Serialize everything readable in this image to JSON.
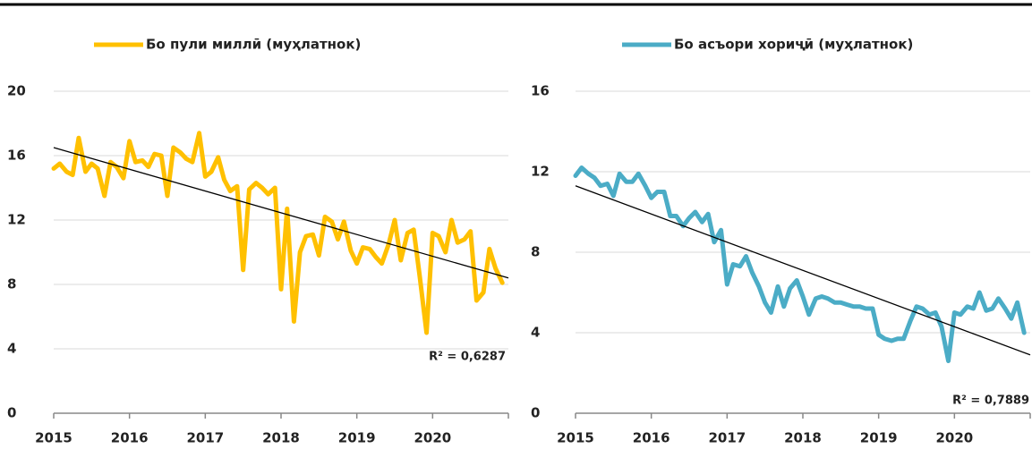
{
  "chart_data": [
    {
      "type": "line",
      "x": [
        2015,
        2015.08,
        2015.17,
        2015.25,
        2015.33,
        2015.42,
        2015.5,
        2015.58,
        2015.67,
        2015.75,
        2015.83,
        2015.92,
        2016,
        2016.08,
        2016.17,
        2016.25,
        2016.33,
        2016.42,
        2016.5,
        2016.58,
        2016.67,
        2016.75,
        2016.83,
        2016.92,
        2017,
        2017.08,
        2017.17,
        2017.25,
        2017.33,
        2017.42,
        2017.5,
        2017.58,
        2017.67,
        2017.75,
        2017.83,
        2017.92,
        2018,
        2018.08,
        2018.17,
        2018.25,
        2018.33,
        2018.42,
        2018.5,
        2018.58,
        2018.67,
        2018.75,
        2018.83,
        2018.92,
        2019,
        2019.08,
        2019.17,
        2019.25,
        2019.33,
        2019.42,
        2019.5,
        2019.58,
        2019.67,
        2019.75,
        2019.83,
        2019.92,
        2020,
        2020.08,
        2020.17,
        2020.25,
        2020.33,
        2020.42,
        2020.5,
        2020.58,
        2020.67,
        2020.75,
        2020.83,
        2020.92
      ],
      "series": [
        {
          "name": "Бо пули миллӣ (муҳлатнок)",
          "color": "#FFC000",
          "values": [
            15.2,
            15.5,
            15.0,
            14.8,
            17.1,
            15.0,
            15.5,
            15.2,
            13.5,
            15.6,
            15.3,
            14.6,
            16.9,
            15.6,
            15.7,
            15.3,
            16.1,
            16.0,
            13.5,
            16.5,
            16.2,
            15.8,
            15.6,
            17.4,
            14.7,
            15.0,
            15.9,
            14.5,
            13.8,
            14.1,
            8.9,
            13.9,
            14.3,
            14.0,
            13.6,
            14.0,
            7.7,
            12.7,
            5.7,
            10.0,
            11.0,
            11.1,
            9.8,
            12.2,
            11.9,
            10.8,
            11.9,
            10.1,
            9.3,
            10.3,
            10.2,
            9.7,
            9.3,
            10.5,
            12.0,
            9.5,
            11.2,
            11.4,
            8.5,
            5.0,
            11.2,
            11.0,
            10.0,
            12.0,
            10.6,
            10.8,
            11.3,
            7.0,
            7.5,
            10.2,
            9.0,
            8.1
          ]
        }
      ],
      "trend": {
        "x": [
          2015,
          2021
        ],
        "values": [
          16.5,
          8.4
        ]
      },
      "annotation": "R² = 0,6287",
      "xlim": [
        2015,
        2021
      ],
      "xticks": [
        2015,
        2016,
        2017,
        2018,
        2019,
        2020
      ],
      "ylim": [
        0,
        20
      ],
      "yticks": [
        0,
        4,
        8,
        12,
        16,
        20
      ],
      "grid": true
    },
    {
      "type": "line",
      "x": [
        2015,
        2015.08,
        2015.17,
        2015.25,
        2015.33,
        2015.42,
        2015.5,
        2015.58,
        2015.67,
        2015.75,
        2015.83,
        2015.92,
        2016,
        2016.08,
        2016.17,
        2016.25,
        2016.33,
        2016.42,
        2016.5,
        2016.58,
        2016.67,
        2016.75,
        2016.83,
        2016.92,
        2017,
        2017.08,
        2017.17,
        2017.25,
        2017.33,
        2017.42,
        2017.5,
        2017.58,
        2017.67,
        2017.75,
        2017.83,
        2017.92,
        2018,
        2018.08,
        2018.17,
        2018.25,
        2018.33,
        2018.42,
        2018.5,
        2018.58,
        2018.67,
        2018.75,
        2018.83,
        2018.92,
        2019,
        2019.08,
        2019.17,
        2019.25,
        2019.33,
        2019.42,
        2019.5,
        2019.58,
        2019.67,
        2019.75,
        2019.83,
        2019.92,
        2020,
        2020.08,
        2020.17,
        2020.25,
        2020.33,
        2020.42,
        2020.5,
        2020.58,
        2020.67,
        2020.75,
        2020.83,
        2020.92
      ],
      "series": [
        {
          "name": "Бо асъори хориҷӣ (муҳлатнок)",
          "color": "#4BACC6",
          "values": [
            11.8,
            12.2,
            11.9,
            11.7,
            11.3,
            11.4,
            10.8,
            11.9,
            11.5,
            11.5,
            11.9,
            11.3,
            10.7,
            11.0,
            11.0,
            9.8,
            9.8,
            9.3,
            9.7,
            10.0,
            9.5,
            9.9,
            8.5,
            9.1,
            6.4,
            7.4,
            7.3,
            7.8,
            7.0,
            6.3,
            5.5,
            5.0,
            6.3,
            5.3,
            6.2,
            6.6,
            5.8,
            4.9,
            5.7,
            5.8,
            5.7,
            5.5,
            5.5,
            5.4,
            5.3,
            5.3,
            5.2,
            5.2,
            3.9,
            3.7,
            3.6,
            3.7,
            3.7,
            4.6,
            5.3,
            5.2,
            4.9,
            5.0,
            4.3,
            2.6,
            5.0,
            4.9,
            5.3,
            5.2,
            6.0,
            5.1,
            5.2,
            5.7,
            5.2,
            4.7,
            5.5,
            4.0
          ]
        }
      ],
      "trend": {
        "x": [
          2015,
          2021
        ],
        "values": [
          11.3,
          2.9
        ]
      },
      "annotation": "R² = 0,7889",
      "xlim": [
        2015,
        2021
      ],
      "xticks": [
        2015,
        2016,
        2017,
        2018,
        2019,
        2020
      ],
      "ylim": [
        0,
        16
      ],
      "yticks": [
        0,
        4,
        8,
        12,
        16
      ],
      "grid": true
    }
  ]
}
